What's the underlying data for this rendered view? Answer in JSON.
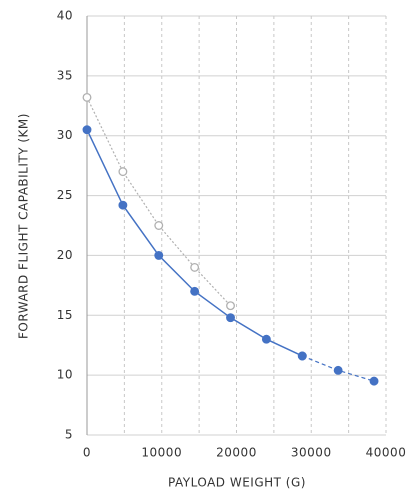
{
  "chart_data": {
    "type": "line",
    "xlabel": "PAYLOAD WEIGHT (G)",
    "ylabel": "FORWARD FLIGHT CAPABILITY (KM)",
    "x": [
      0,
      4800,
      9600,
      14400,
      19200,
      24000,
      28800,
      33600,
      38400
    ],
    "series": [
      {
        "color": "#4472c4",
        "line_style": "solid",
        "marker": "filled",
        "values": [
          30.5,
          24.2,
          20.0,
          17.0,
          14.8,
          13.0,
          11.6,
          null,
          null
        ]
      },
      {
        "color": "#4472c4",
        "line_style": "dashed",
        "marker": "filled",
        "values": [
          null,
          null,
          null,
          null,
          null,
          null,
          11.6,
          10.4,
          9.5
        ]
      },
      {
        "color": "#b0b0b0",
        "line_style": "dotted",
        "marker": "open",
        "values": [
          33.2,
          27.0,
          22.5,
          19.0,
          15.8,
          null,
          null,
          null,
          null
        ]
      }
    ],
    "xlim": [
      0,
      40000
    ],
    "xticks": [
      0,
      10000,
      20000,
      30000,
      40000
    ],
    "xminorticks": [
      5000,
      15000,
      25000,
      35000
    ],
    "ylim": [
      5,
      40
    ],
    "yticks": [
      5,
      10,
      15,
      20,
      25,
      30,
      35,
      40
    ],
    "grid": true
  }
}
